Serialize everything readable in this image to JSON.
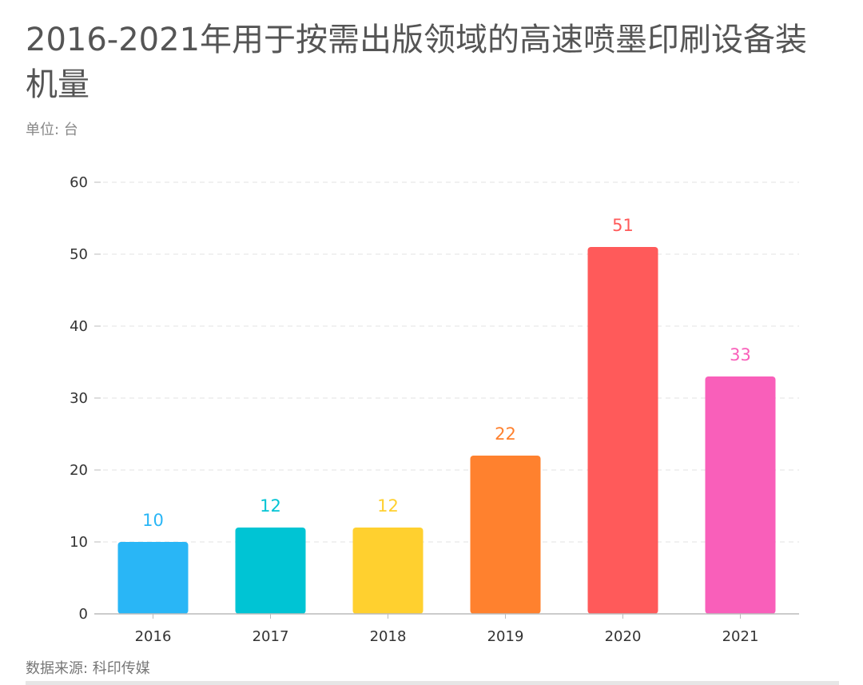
{
  "chart_data": {
    "type": "bar",
    "title": "2016-2021年用于按需出版领域的高速喷墨印刷设备装机量",
    "subtitle": "单位: 台",
    "source": "数据来源: 科印传媒",
    "categories": [
      "2016",
      "2017",
      "2018",
      "2019",
      "2020",
      "2021"
    ],
    "values": [
      10,
      12,
      12,
      22,
      51,
      33
    ],
    "colors": [
      "#29b6f6",
      "#00c4d4",
      "#ffd02f",
      "#ff812e",
      "#ff5a5a",
      "#f95fba"
    ],
    "ylim": [
      0,
      60
    ],
    "yticks": [
      0,
      10,
      20,
      30,
      40,
      50,
      60
    ],
    "grid": true,
    "legend": "none"
  }
}
